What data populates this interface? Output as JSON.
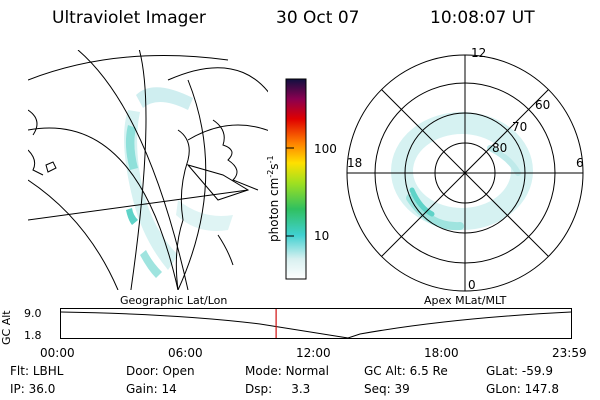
{
  "header": {
    "instrument": "Ultraviolet Imager",
    "date": "30 Oct 07",
    "time": "10:08:07 UT"
  },
  "left_panel": {
    "label": "Geographic Lat/Lon"
  },
  "right_panel": {
    "label": "Apex MLat/MLT",
    "mlt_labels": [
      "12",
      "18",
      "6",
      "0"
    ],
    "mlat_labels": [
      "60",
      "70",
      "80"
    ]
  },
  "colorbar": {
    "unit": "photon cm",
    "unit_exp1": "-2",
    "unit_mid": "s",
    "unit_exp2": "-1",
    "ticks": [
      "100",
      "10"
    ]
  },
  "timeline": {
    "ylabel": "GC Alt",
    "yticks": [
      "9.0",
      "1.8"
    ],
    "xticks": [
      "00:00",
      "06:00",
      "12:00",
      "18:00",
      "23:59"
    ],
    "current_hour": 10.13
  },
  "status": {
    "row1": [
      {
        "label": "Flt:",
        "value": "LBHL"
      },
      {
        "label": "Door:",
        "value": "Open"
      },
      {
        "label": "Mode:",
        "value": "Normal"
      },
      {
        "label": "GC Alt:",
        "value": "6.5 Re"
      },
      {
        "label": "GLat:",
        "value": "-59.9"
      }
    ],
    "row2": [
      {
        "label": "IP:",
        "value": "36.0"
      },
      {
        "label": "Gain:",
        "value": "14"
      },
      {
        "label": "Dsp:",
        "value": "3.3"
      },
      {
        "label": "Seq:",
        "value": "39"
      },
      {
        "label": "GLon:",
        "value": "147.8"
      }
    ]
  },
  "colors": {
    "marker": "#d01010",
    "aurora": "#5fd3c8"
  }
}
